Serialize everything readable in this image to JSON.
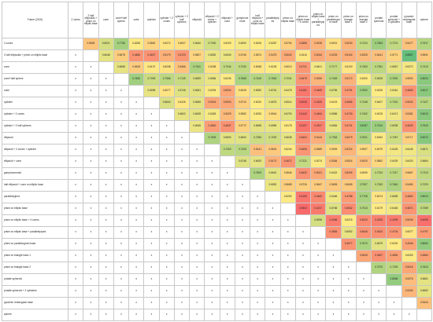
{
  "table": {
    "corner_label": "Future (2100)",
    "column_headers": [
      "2 cones",
      "2 half ellipsoids + prism on elliptic base",
      "cone",
      "cone+half sphere",
      "cube",
      "cylinder",
      "cylinder + 2 cones",
      "cylinder + 2 half spheres",
      "ellipsoid",
      "ellipsoid + 2 cones + cylinder",
      "ellipsoid + cone",
      "gomphonemoid",
      "half ellipsoid + cone on elliptic base",
      "parallelepiped",
      "prism on elliptic base",
      "prism on elliptic base + 4 cones",
      "prism on elliptic base + parallelepiped",
      "prism on parallelogram base",
      "prism on triangle base 1",
      "prism on triangle base 2",
      "prolate spheroid",
      "prolate spheroid + 2 cylinders",
      "pyramid: rectangular base",
      "sphere"
    ],
    "rows": [
      {
        "label": "2 cones",
        "cells": [
          "",
          "0.5505",
          "0.6921",
          "0.7756",
          "0.6255",
          "0.5800",
          "0.6074",
          "0.6007",
          "0.6640",
          "0.7000",
          "0.6209",
          "0.6390",
          "0.6206",
          "0.6287",
          "0.5704",
          "0.4885",
          "0.5235",
          "0.6001",
          "0.5230",
          "0.7224",
          "0.7863",
          "0.7274",
          "0.5477",
          "0.7517"
        ]
      },
      {
        "label": "2 half ellipsoids + prism on elliptic base",
        "cells": [
          "x",
          "",
          "0.6648",
          "0.5678",
          "0.4665",
          "0.4627",
          "0.5179",
          "0.4723",
          "0.5807",
          "0.6552",
          "0.6540",
          "0.5746",
          "0.5874",
          "0.5475",
          "0.5042",
          "0.6116",
          "0.5044",
          "0.5225",
          "0.5104",
          "0.5325",
          "0.5441",
          "0.5771",
          "0.8857",
          "0.5591"
        ]
      },
      {
        "label": "cone",
        "cells": [
          "x",
          "x",
          "",
          "0.6658",
          "0.5625",
          "0.6137",
          "0.6038",
          "0.5466",
          "0.7611",
          "0.6038",
          "0.7244",
          "0.7230",
          "0.6068",
          "0.6228",
          "0.6010",
          "0.4721",
          "0.6401",
          "0.7177",
          "0.6100",
          "0.7363",
          "0.7351",
          "0.6657",
          "0.6372",
          "0.7413"
        ]
      },
      {
        "label": "cone+half sphere",
        "cells": [
          "x",
          "x",
          "x",
          "",
          "0.7840",
          "0.7093",
          "0.7366",
          "0.7135",
          "0.6839",
          "0.6584",
          "0.6245",
          "0.7665",
          "0.7449",
          "0.7540",
          "0.7031",
          "0.4675",
          "0.5250",
          "0.7449",
          "0.5172",
          "0.6200",
          "0.6925",
          "0.7591",
          "0.5590",
          "0.8224"
        ]
      },
      {
        "label": "cube",
        "cells": [
          "x",
          "x",
          "x",
          "x",
          "",
          "0.6595",
          "0.6077",
          "0.6746",
          "0.6661",
          "0.6294",
          "0.5004",
          "0.6028",
          "0.6550",
          "0.6751",
          "0.6478",
          "0.4161",
          "0.4469",
          "0.6756",
          "0.4751",
          "0.7832",
          "0.6226",
          "0.6461",
          "0.4669",
          "0.8217"
        ]
      },
      {
        "label": "cylinder",
        "cells": [
          "x",
          "x",
          "x",
          "x",
          "x",
          "",
          "0.6840",
          "0.6126",
          "0.6655",
          "0.5016",
          "0.5000",
          "0.5710",
          "0.6220",
          "0.6575",
          "0.6514",
          "0.4034",
          "0.4320",
          "0.6223",
          "0.4665",
          "0.7348",
          "0.6407",
          "0.7301",
          "0.5002",
          "0.7427"
        ]
      },
      {
        "label": "cylinder + 2 cones",
        "cells": [
          "x",
          "x",
          "x",
          "x",
          "x",
          "x",
          "",
          "0.6602",
          "0.6639",
          "0.6363",
          "0.5329",
          "0.5982",
          "0.6253",
          "0.5944",
          "0.6700",
          "0.4142",
          "0.4464",
          "0.6586",
          "0.4730",
          "0.7402",
          "0.6215",
          "0.6471",
          "0.5381",
          "0.8213"
        ]
      },
      {
        "label": "cylinder + 2 half spheres",
        "cells": [
          "x",
          "x",
          "x",
          "x",
          "x",
          "x",
          "x",
          "",
          "0.6545",
          "0.4840",
          "0.4637",
          "0.5772",
          "0.6655",
          "0.6589",
          "0.6178",
          "0.4107",
          "0.4317",
          "0.6584",
          "0.4741",
          "0.8187",
          "0.7914",
          "0.6935",
          "0.4625",
          "0.7943"
        ]
      },
      {
        "label": "ellipsoid",
        "cells": [
          "x",
          "x",
          "x",
          "x",
          "x",
          "x",
          "x",
          "x",
          "",
          "0.7609",
          "0.6690",
          "0.6694",
          "0.7084",
          "0.7020",
          "0.6638",
          "0.4602",
          "0.5143",
          "0.7363",
          "0.5079",
          "0.7621",
          "0.6262",
          "0.7067",
          "0.5717",
          "0.8272"
        ]
      },
      {
        "label": "ellipsoid + 2 cones + cylinder",
        "cells": [
          "x",
          "x",
          "x",
          "x",
          "x",
          "x",
          "x",
          "x",
          "x",
          "",
          "0.7300",
          "0.7405",
          "0.5441",
          "0.5602",
          "0.6244",
          "0.4696",
          "0.5589",
          "0.5909",
          "0.5224",
          "0.5907",
          "0.6079",
          "0.6425",
          "0.6446",
          "0.6871"
        ]
      },
      {
        "label": "ellipsoid + cone",
        "cells": [
          "x",
          "x",
          "x",
          "x",
          "x",
          "x",
          "x",
          "x",
          "x",
          "x",
          "",
          "0.6748",
          "0.6633",
          "0.5170",
          "0.4671",
          "0.7221",
          "0.6274",
          "0.5384",
          "0.5524",
          "0.5420",
          "0.5862",
          "0.6429",
          "0.6420",
          "0.6664"
        ]
      },
      {
        "label": "gomphonemoid",
        "cells": [
          "x",
          "x",
          "x",
          "x",
          "x",
          "x",
          "x",
          "x",
          "x",
          "x",
          "x",
          "",
          "0.7603",
          "0.6642",
          "0.5846",
          "0.4632",
          "0.5021",
          "0.6422",
          "0.5005",
          "0.6099",
          "0.7224",
          "0.7317",
          "0.5687",
          "0.7313"
        ]
      },
      {
        "label": "half ellipsoid + cone on elliptic base",
        "cells": [
          "x",
          "x",
          "x",
          "x",
          "x",
          "x",
          "x",
          "x",
          "x",
          "x",
          "x",
          "x",
          "",
          "0.6552",
          "0.5685",
          "0.5726",
          "0.5647",
          "0.5605",
          "0.5608",
          "0.7507",
          "0.7263",
          "0.7640",
          "0.5480",
          "0.7229"
        ]
      },
      {
        "label": "parallelepiped",
        "cells": [
          "x",
          "x",
          "x",
          "x",
          "x",
          "x",
          "x",
          "x",
          "x",
          "x",
          "x",
          "x",
          "x",
          "",
          "0.6252",
          "0.4150",
          "0.4462",
          "0.6466",
          "0.4788",
          "0.7708",
          "0.6074",
          "0.6655",
          "0.4862",
          "0.8024"
        ]
      },
      {
        "label": "prism on elliptic base",
        "cells": [
          "x",
          "x",
          "x",
          "x",
          "x",
          "x",
          "x",
          "x",
          "x",
          "x",
          "x",
          "x",
          "x",
          "x",
          "",
          "0.3922",
          "0.4217",
          "0.6766",
          "0.4542",
          "0.7513",
          "0.6179",
          "0.6446",
          "0.4671",
          "0.7289"
        ]
      },
      {
        "label": "prism on elliptic base + 4 cones",
        "cells": [
          "x",
          "x",
          "x",
          "x",
          "x",
          "x",
          "x",
          "x",
          "x",
          "x",
          "x",
          "x",
          "x",
          "x",
          "x",
          "",
          "0.6936",
          "0.4266",
          "0.6215",
          "0.4523",
          "0.4329",
          "0.4259",
          "0.5005",
          "0.4005"
        ]
      },
      {
        "label": "prism on elliptic base + parallelepiped",
        "cells": [
          "x",
          "x",
          "x",
          "x",
          "x",
          "x",
          "x",
          "x",
          "x",
          "x",
          "x",
          "x",
          "x",
          "x",
          "x",
          "x",
          "",
          "0.4584",
          "0.6592",
          "0.4646",
          "0.4610",
          "0.4704",
          "0.6077",
          "0.4797"
        ]
      },
      {
        "label": "prism on parallelogram base",
        "cells": [
          "x",
          "x",
          "x",
          "x",
          "x",
          "x",
          "x",
          "x",
          "x",
          "x",
          "x",
          "x",
          "x",
          "x",
          "x",
          "x",
          "x",
          "",
          "0.4677",
          "0.7670",
          "0.6679",
          "0.6220",
          "0.4946",
          "0.8062"
        ]
      },
      {
        "label": "prism on triangle base 1",
        "cells": [
          "x",
          "x",
          "x",
          "x",
          "x",
          "x",
          "x",
          "x",
          "x",
          "x",
          "x",
          "x",
          "x",
          "x",
          "x",
          "x",
          "x",
          "x",
          "",
          "0.5005",
          "0.4607",
          "0.4894",
          "0.6263",
          "0.4884"
        ]
      },
      {
        "label": "prism on triangle base 2",
        "cells": [
          "x",
          "x",
          "x",
          "x",
          "x",
          "x",
          "x",
          "x",
          "x",
          "x",
          "x",
          "x",
          "x",
          "x",
          "x",
          "x",
          "x",
          "x",
          "x",
          "",
          "0.7570",
          "0.7329",
          "0.5016",
          "0.7624"
        ]
      },
      {
        "label": "prolate spheroid",
        "cells": [
          "x",
          "x",
          "x",
          "x",
          "x",
          "x",
          "x",
          "x",
          "x",
          "x",
          "x",
          "x",
          "x",
          "x",
          "x",
          "x",
          "x",
          "x",
          "x",
          "x",
          "",
          "0.8066",
          "0.5376",
          "0.6661"
        ]
      },
      {
        "label": "prolate spheroid + 2 cylinders",
        "cells": [
          "x",
          "x",
          "x",
          "x",
          "x",
          "x",
          "x",
          "x",
          "x",
          "x",
          "x",
          "x",
          "x",
          "x",
          "x",
          "x",
          "x",
          "x",
          "x",
          "x",
          "x",
          "",
          "0.5260",
          "0.6652"
        ]
      },
      {
        "label": "pyramid: rectangular base",
        "cells": [
          "x",
          "x",
          "x",
          "x",
          "x",
          "x",
          "x",
          "x",
          "x",
          "x",
          "x",
          "x",
          "x",
          "x",
          "x",
          "x",
          "x",
          "x",
          "x",
          "x",
          "x",
          "x",
          "",
          "0.5444"
        ]
      },
      {
        "label": "sphere",
        "cells": [
          "x",
          "x",
          "x",
          "x",
          "x",
          "x",
          "x",
          "x",
          "x",
          "x",
          "x",
          "x",
          "x",
          "x",
          "x",
          "x",
          "x",
          "x",
          "x",
          "x",
          "x",
          "x",
          "x",
          ""
        ]
      }
    ]
  },
  "colors": {
    "scale_low": "#f8696b",
    "scale_mid": "#ffeb84",
    "scale_high": "#63be7b",
    "grid": "#c8c8c8"
  }
}
